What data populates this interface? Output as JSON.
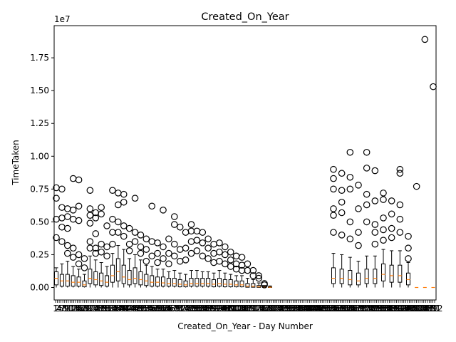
{
  "chart_data": {
    "type": "box",
    "title": "Created_On_Year",
    "xlabel": "Created_On_Year - Day Number",
    "ylabel": "TimeTaken",
    "y_multiplier_label": "1e7",
    "y_ticks": [
      0,
      2500000,
      5000000,
      7500000,
      10000000,
      12500000,
      15000000,
      17500000
    ],
    "y_tick_labels": [
      "0.00",
      "0.25",
      "0.50",
      "0.75",
      "1.00",
      "1.25",
      "1.50",
      "1.75"
    ],
    "ylim": [
      -950000,
      19950000
    ],
    "x_range": [
      1,
      212
    ],
    "x_tick_labels": [
      "1",
      "2",
      "4",
      "5",
      "7",
      "8",
      "9",
      "10",
      "11",
      "12",
      "13",
      "14",
      "15",
      "16",
      "17",
      "18",
      "19",
      "20",
      "21",
      "22",
      "23",
      "24",
      "25",
      "26",
      "27",
      "28",
      "29",
      "30",
      "31",
      "32",
      "33",
      "34",
      "35",
      "36",
      "37",
      "38",
      "39",
      "40",
      "41",
      "42",
      "43",
      "44",
      "45",
      "46",
      "47",
      "48",
      "49",
      "50",
      "51",
      "52",
      "53",
      "54",
      "55",
      "56",
      "57",
      "58",
      "59",
      "60",
      "61",
      "62",
      "63",
      "64",
      "65",
      "66",
      "67",
      "68",
      "69",
      "70",
      "71",
      "72",
      "73",
      "74",
      "75",
      "76",
      "77",
      "78",
      "79",
      "80",
      "81",
      "82",
      "83",
      "84",
      "85",
      "86",
      "87",
      "88",
      "89",
      "90",
      "91",
      "92",
      "93",
      "94",
      "95",
      "96",
      "97",
      "98",
      "99",
      "100",
      "101",
      "102",
      "103",
      "104",
      "105",
      "106",
      "107",
      "108",
      "109",
      "110",
      "111",
      "112",
      "113",
      "114",
      "115",
      "116",
      "117",
      "118",
      "119",
      "120",
      "121",
      "122",
      "123",
      "124",
      "125",
      "126",
      "127",
      "128",
      "129",
      "130",
      "131",
      "132",
      "133",
      "134",
      "135",
      "136",
      "137",
      "138",
      "139",
      "140",
      "141",
      "142",
      "143",
      "144",
      "145",
      "146",
      "147",
      "148",
      "149",
      "150",
      "151",
      "152",
      "153",
      "154",
      "155",
      "156",
      "157",
      "158",
      "159",
      "160",
      "161",
      "162",
      "163",
      "164",
      "165",
      "166",
      "167",
      "168",
      "169",
      "170",
      "171",
      "172",
      "173",
      "174",
      "175",
      "176",
      "177",
      "178",
      "179",
      "180",
      "181",
      "182",
      "183",
      "184",
      "185",
      "186",
      "187",
      "188",
      "189",
      "190",
      "191",
      "192",
      "193",
      "194",
      "195",
      "196",
      "197",
      "198",
      "199",
      "200",
      "201",
      "202",
      "203",
      "204",
      "205",
      "206",
      "207",
      "208",
      "209",
      "210",
      "211",
      "212"
    ],
    "grid": false,
    "colors": {
      "box": "#000000",
      "median": "#ff7f0e",
      "flier": "#000000"
    },
    "boxes": [
      {
        "q1": 200000,
        "med": 700000,
        "q3": 1200000,
        "wlo": 0,
        "whi": 1500000,
        "outliers": [
          7600000,
          6800000,
          5200000,
          3800000
        ]
      },
      {
        "q1": 100000,
        "med": 500000,
        "q3": 1000000,
        "wlo": 0,
        "whi": 1800000,
        "outliers": [
          7500000,
          6100000,
          5300000,
          4600000,
          3500000
        ]
      },
      {
        "q1": 100000,
        "med": 500000,
        "q3": 1000000,
        "wlo": 0,
        "whi": 2000000,
        "outliers": [
          6000000,
          5400000,
          4500000,
          3200000,
          2600000
        ]
      },
      {
        "q1": 100000,
        "med": 400000,
        "q3": 900000,
        "wlo": 0,
        "whi": 1600000,
        "outliers": [
          8300000,
          5900000,
          5200000,
          3000000,
          2300000
        ]
      },
      {
        "q1": 100000,
        "med": 400000,
        "q3": 800000,
        "wlo": 0,
        "whi": 1400000,
        "outliers": [
          8200000,
          6200000,
          5100000,
          2500000,
          1800000
        ]
      },
      {
        "q1": 50000,
        "med": 200000,
        "q3": 500000,
        "wlo": 0,
        "whi": 1000000,
        "outliers": [
          2200000,
          1500000
        ]
      },
      {
        "q1": 300000,
        "med": 700000,
        "q3": 1400000,
        "wlo": 0,
        "whi": 2400000,
        "outliers": [
          7400000,
          6000000,
          5500000,
          4900000,
          3500000,
          3000000
        ]
      },
      {
        "q1": 200000,
        "med": 600000,
        "q3": 1200000,
        "wlo": 0,
        "whi": 2100000,
        "outliers": [
          5700000,
          5300000,
          4100000,
          3000000,
          2600000
        ]
      },
      {
        "q1": 150000,
        "med": 500000,
        "q3": 1100000,
        "wlo": 0,
        "whi": 1900000,
        "outliers": [
          6100000,
          5600000,
          3300000,
          2700000
        ]
      },
      {
        "q1": 100000,
        "med": 400000,
        "q3": 900000,
        "wlo": 0,
        "whi": 1600000,
        "outliers": [
          4700000,
          3100000,
          2400000
        ]
      },
      {
        "q1": 400000,
        "med": 900000,
        "q3": 1700000,
        "wlo": 0,
        "whi": 2600000,
        "outliers": [
          7400000,
          5200000,
          4200000,
          3300000
        ]
      },
      {
        "q1": 500000,
        "med": 1200000,
        "q3": 2200000,
        "wlo": 0,
        "whi": 3200000,
        "outliers": [
          7200000,
          6300000,
          5000000,
          4200000
        ]
      },
      {
        "q1": 300000,
        "med": 800000,
        "q3": 1700000,
        "wlo": 0,
        "whi": 2900000,
        "outliers": [
          7100000,
          6500000,
          4700000,
          3900000
        ]
      },
      {
        "q1": 200000,
        "med": 600000,
        "q3": 1300000,
        "wlo": 0,
        "whi": 2200000,
        "outliers": [
          4500000,
          3300000,
          2800000
        ]
      },
      {
        "q1": 300000,
        "med": 700000,
        "q3": 1500000,
        "wlo": 0,
        "whi": 2500000,
        "outliers": [
          6800000,
          4200000,
          3500000
        ]
      },
      {
        "q1": 200000,
        "med": 600000,
        "q3": 1200000,
        "wlo": 0,
        "whi": 2100000,
        "outliers": [
          4000000,
          3100000,
          2600000
        ]
      },
      {
        "q1": 150000,
        "med": 500000,
        "q3": 1000000,
        "wlo": 0,
        "whi": 1700000,
        "outliers": [
          3700000,
          2900000,
          2000000
        ]
      },
      {
        "q1": 100000,
        "med": 400000,
        "q3": 900000,
        "wlo": 0,
        "whi": 1600000,
        "outliers": [
          6200000,
          3500000,
          2400000
        ]
      },
      {
        "q1": 100000,
        "med": 400000,
        "q3": 800000,
        "wlo": 0,
        "whi": 1400000,
        "outliers": [
          3400000,
          2600000,
          1900000
        ]
      },
      {
        "q1": 100000,
        "med": 350000,
        "q3": 800000,
        "wlo": 0,
        "whi": 1400000,
        "outliers": [
          5900000,
          3100000,
          2200000
        ]
      },
      {
        "q1": 100000,
        "med": 300000,
        "q3": 700000,
        "wlo": 0,
        "whi": 1200000,
        "outliers": [
          3700000,
          2600000,
          1800000
        ]
      },
      {
        "q1": 100000,
        "med": 300000,
        "q3": 700000,
        "wlo": 0,
        "whi": 1300000,
        "outliers": [
          5400000,
          4800000,
          3300000,
          2400000
        ]
      },
      {
        "q1": 50000,
        "med": 250000,
        "q3": 600000,
        "wlo": 0,
        "whi": 1100000,
        "outliers": [
          4600000,
          2900000,
          2000000
        ]
      },
      {
        "q1": 50000,
        "med": 200000,
        "q3": 500000,
        "wlo": 0,
        "whi": 1000000,
        "outliers": [
          4200000,
          3000000,
          2100000
        ]
      },
      {
        "q1": 100000,
        "med": 300000,
        "q3": 700000,
        "wlo": 0,
        "whi": 1300000,
        "outliers": [
          4800000,
          4300000,
          3500000,
          2600000
        ]
      },
      {
        "q1": 100000,
        "med": 300000,
        "q3": 700000,
        "wlo": 0,
        "whi": 1300000,
        "outliers": [
          4300000,
          3600000,
          2800000
        ]
      },
      {
        "q1": 100000,
        "med": 300000,
        "q3": 700000,
        "wlo": 0,
        "whi": 1200000,
        "outliers": [
          4200000,
          3400000,
          2400000
        ]
      },
      {
        "q1": 100000,
        "med": 300000,
        "q3": 700000,
        "wlo": 0,
        "whi": 1200000,
        "outliers": [
          3700000,
          3000000,
          2200000
        ]
      },
      {
        "q1": 50000,
        "med": 250000,
        "q3": 600000,
        "wlo": 0,
        "whi": 1100000,
        "outliers": [
          3300000,
          2600000,
          1900000
        ]
      },
      {
        "q1": 100000,
        "med": 300000,
        "q3": 700000,
        "wlo": 0,
        "whi": 1300000,
        "outliers": [
          3400000,
          2700000,
          2000000
        ]
      },
      {
        "q1": 50000,
        "med": 250000,
        "q3": 600000,
        "wlo": 0,
        "whi": 1100000,
        "outliers": [
          3100000,
          2500000,
          1800000
        ]
      },
      {
        "q1": 50000,
        "med": 250000,
        "q3": 600000,
        "wlo": 0,
        "whi": 1000000,
        "outliers": [
          2700000,
          2100000,
          1600000
        ]
      },
      {
        "q1": 50000,
        "med": 200000,
        "q3": 500000,
        "wlo": 0,
        "whi": 900000,
        "outliers": [
          2400000,
          1800000,
          1400000
        ]
      },
      {
        "q1": 50000,
        "med": 200000,
        "q3": 500000,
        "wlo": 0,
        "whi": 900000,
        "outliers": [
          2300000,
          1700000,
          1300000
        ]
      },
      {
        "q1": 20000,
        "med": 100000,
        "q3": 300000,
        "wlo": 0,
        "whi": 700000,
        "outliers": [
          1800000,
          1300000
        ]
      },
      {
        "q1": 20000,
        "med": 100000,
        "q3": 300000,
        "wlo": 0,
        "whi": 600000,
        "outliers": [
          1300000,
          900000
        ]
      },
      {
        "q1": 10000,
        "med": 50000,
        "q3": 150000,
        "wlo": 0,
        "whi": 350000,
        "outliers": [
          900000,
          700000
        ]
      },
      {
        "q1": 5000,
        "med": 20000,
        "q3": 60000,
        "wlo": 0,
        "whi": 150000,
        "outliers": [
          300000,
          200000
        ]
      },
      {
        "q1": 5000,
        "med": 20000,
        "q3": 50000,
        "wlo": 0,
        "whi": 120000,
        "outliers": []
      },
      {
        "q1": 300000,
        "med": 700000,
        "q3": 1500000,
        "wlo": 0,
        "whi": 2600000,
        "outliers": [
          9000000,
          8300000,
          7500000,
          6000000,
          5500000,
          4200000
        ]
      },
      {
        "q1": 300000,
        "med": 700000,
        "q3": 1400000,
        "wlo": 0,
        "whi": 2500000,
        "outliers": [
          8700000,
          7400000,
          6500000,
          5700000,
          4000000
        ]
      },
      {
        "q1": 200000,
        "med": 600000,
        "q3": 1300000,
        "wlo": 0,
        "whi": 2300000,
        "outliers": [
          10300000,
          8400000,
          7500000,
          5000000,
          3700000
        ]
      },
      {
        "q1": 200000,
        "med": 500000,
        "q3": 1100000,
        "wlo": 0,
        "whi": 2000000,
        "outliers": [
          7800000,
          6000000,
          4200000,
          3200000
        ]
      },
      {
        "q1": 300000,
        "med": 700000,
        "q3": 1400000,
        "wlo": 0,
        "whi": 2400000,
        "outliers": [
          10300000,
          9100000,
          7100000,
          6300000,
          5000000
        ]
      },
      {
        "q1": 300000,
        "med": 700000,
        "q3": 1400000,
        "wlo": 0,
        "whi": 2400000,
        "outliers": [
          8900000,
          6600000,
          4800000,
          4200000,
          3300000
        ]
      },
      {
        "q1": 500000,
        "med": 1000000,
        "q3": 1800000,
        "wlo": 0,
        "whi": 2900000,
        "outliers": [
          7200000,
          6700000,
          5300000,
          4400000,
          3600000
        ]
      },
      {
        "q1": 400000,
        "med": 900000,
        "q3": 1700000,
        "wlo": 0,
        "whi": 2800000,
        "outliers": [
          6600000,
          5600000,
          4500000,
          3800000
        ]
      },
      {
        "q1": 400000,
        "med": 900000,
        "q3": 1700000,
        "wlo": 0,
        "whi": 2800000,
        "outliers": [
          9000000,
          8700000,
          6300000,
          5200000,
          4200000
        ]
      },
      {
        "q1": 200000,
        "med": 600000,
        "q3": 1100000,
        "wlo": 0,
        "whi": 1900000,
        "outliers": [
          3900000,
          3000000,
          2200000
        ]
      },
      {
        "q1": 0,
        "med": 0,
        "q3": 0,
        "wlo": 0,
        "whi": 0,
        "outliers": [
          7700000
        ]
      },
      {
        "q1": 0,
        "med": 0,
        "q3": 0,
        "wlo": 0,
        "whi": 0,
        "outliers": [
          18900000
        ]
      },
      {
        "q1": 0,
        "med": 0,
        "q3": 0,
        "wlo": 0,
        "whi": 0,
        "outliers": [
          15300000
        ]
      }
    ]
  }
}
